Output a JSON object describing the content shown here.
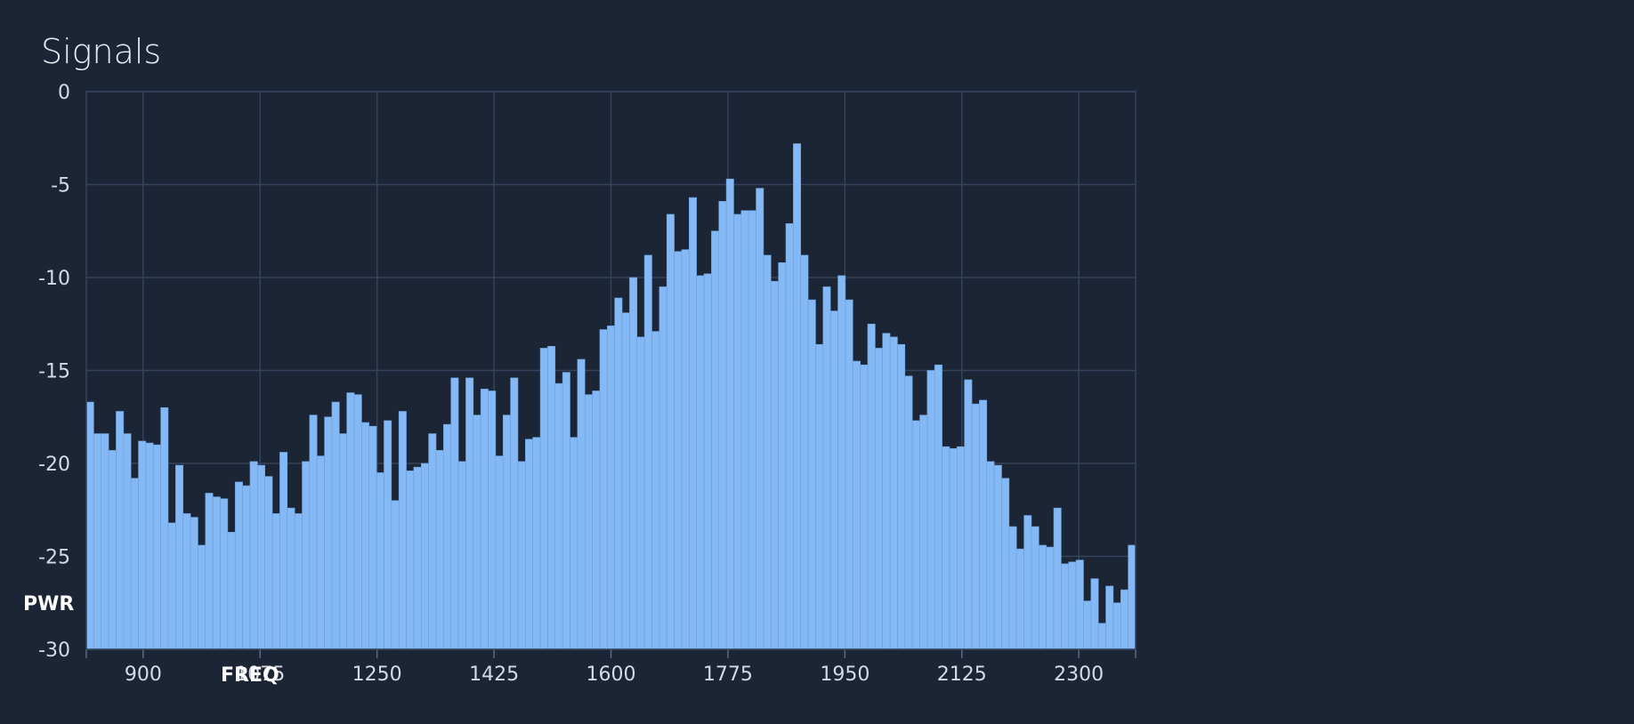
{
  "chart_data": {
    "type": "bar",
    "title": "Signals",
    "xlabel": "FREQ",
    "ylabel": "PWR",
    "x_start": 815,
    "x_end": 2385,
    "x_ticks": [
      900,
      1075,
      1250,
      1425,
      1600,
      1775,
      1950,
      2125,
      2300
    ],
    "ylim": [
      -30,
      0
    ],
    "y_ticks": [
      0,
      -5,
      -10,
      -15,
      -20,
      -25,
      -30
    ],
    "grid": true,
    "bar_color": "#84b9f5",
    "series": [
      {
        "values": [
          -16.7,
          -18.4,
          -18.4,
          -19.3,
          -17.2,
          -18.4,
          -20.8,
          -18.8,
          -18.9,
          -19.0,
          -17.0,
          -23.2,
          -20.1,
          -22.7,
          -22.9,
          -24.4,
          -21.6,
          -21.8,
          -21.9,
          -23.7,
          -21.0,
          -21.2,
          -19.9,
          -20.1,
          -20.7,
          -22.7,
          -19.4,
          -22.4,
          -22.7,
          -19.9,
          -17.4,
          -19.6,
          -17.5,
          -16.7,
          -18.4,
          -16.2,
          -16.3,
          -17.8,
          -18.0,
          -20.5,
          -17.7,
          -22.0,
          -17.2,
          -20.4,
          -20.2,
          -20.0,
          -18.4,
          -19.3,
          -17.9,
          -15.4,
          -19.9,
          -15.4,
          -17.4,
          -16.0,
          -16.1,
          -19.6,
          -17.4,
          -15.4,
          -19.9,
          -18.7,
          -18.6,
          -13.8,
          -13.7,
          -15.7,
          -15.1,
          -18.6,
          -14.4,
          -16.3,
          -16.1,
          -12.8,
          -12.6,
          -11.1,
          -11.9,
          -10.0,
          -13.2,
          -8.8,
          -12.9,
          -10.5,
          -6.6,
          -8.6,
          -8.5,
          -5.7,
          -9.9,
          -9.8,
          -7.5,
          -5.9,
          -4.7,
          -6.6,
          -6.4,
          -6.4,
          -5.2,
          -8.8,
          -10.2,
          -9.2,
          -7.1,
          -2.8,
          -8.8,
          -11.2,
          -13.6,
          -10.5,
          -11.8,
          -9.9,
          -11.2,
          -14.5,
          -14.7,
          -12.5,
          -13.8,
          -13.0,
          -13.2,
          -13.6,
          -15.3,
          -17.7,
          -17.4,
          -15.0,
          -14.7,
          -19.1,
          -19.2,
          -19.1,
          -15.5,
          -16.8,
          -16.6,
          -19.9,
          -20.1,
          -20.8,
          -23.4,
          -24.6,
          -22.8,
          -23.4,
          -24.4,
          -24.5,
          -22.4,
          -25.4,
          -25.3,
          -25.2,
          -27.4,
          -26.2,
          -28.6,
          -26.6,
          -27.5,
          -26.8,
          -24.4
        ]
      }
    ]
  }
}
